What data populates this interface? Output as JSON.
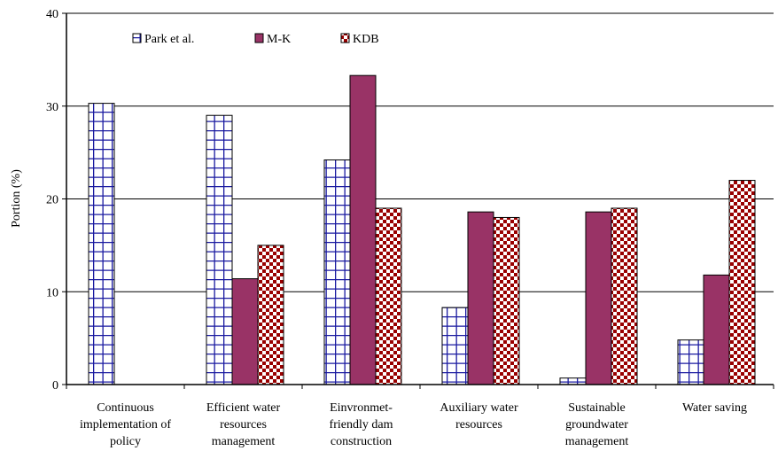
{
  "chart_data": {
    "type": "bar",
    "ylabel": "Portion (%)",
    "xlabel": "",
    "ylim": [
      0,
      40
    ],
    "yticks": [
      0,
      10,
      20,
      30,
      40
    ],
    "grid": "horizontal",
    "legend_placement": "top-left",
    "categories": [
      [
        "Continuous",
        "implementation of",
        "policy"
      ],
      [
        "Efficient water",
        "resources",
        "management"
      ],
      [
        "Einvronmet-",
        "friendly dam",
        "construction"
      ],
      [
        "Auxiliary water",
        "resources"
      ],
      [
        "Sustainable",
        "groundwater",
        "management"
      ],
      [
        "Water saving"
      ]
    ],
    "series": [
      {
        "name": "Park et al.",
        "pattern": "grid",
        "color": "#1a1aa0",
        "values": [
          30.3,
          29.0,
          24.2,
          8.3,
          0.7,
          4.8
        ]
      },
      {
        "name": "M-K",
        "pattern": "solid",
        "color": "#993366",
        "values": [
          0,
          11.4,
          33.3,
          18.6,
          18.6,
          11.8
        ]
      },
      {
        "name": "KDB",
        "pattern": "checker",
        "color": "#990000",
        "values": [
          0,
          15.0,
          19.0,
          18.0,
          19.0,
          22.0
        ]
      }
    ]
  }
}
